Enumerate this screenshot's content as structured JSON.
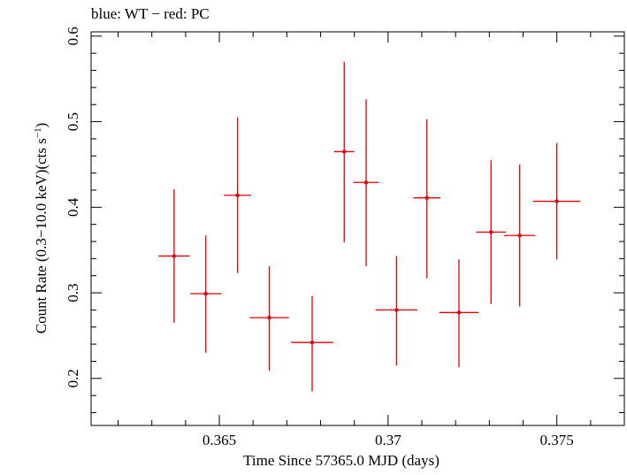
{
  "chart_data": {
    "type": "scatter",
    "title": "blue: WT − red: PC",
    "xlabel": "Time Since 57365.0 MJD (days)",
    "ylabel_main": "Count Rate (0.3−10.0 keV)(cts s",
    "ylabel_sup": "−1",
    "ylabel_tail": ")",
    "xlim": [
      0.3612,
      0.377
    ],
    "ylim": [
      0.145,
      0.605
    ],
    "x_ticks": [
      0.365,
      0.37,
      0.375
    ],
    "x_tick_labels": [
      "0.365",
      "0.37",
      "0.375"
    ],
    "y_ticks": [
      0.2,
      0.3,
      0.4,
      0.5,
      0.6
    ],
    "y_tick_labels": [
      "0.2",
      "0.3",
      "0.4",
      "0.5",
      "0.6"
    ],
    "grid": false,
    "series": [
      {
        "color": "#e00000",
        "points": [
          {
            "x": 0.36366,
            "xerr": 0.00046,
            "y": 0.343,
            "ylo": 0.265,
            "yhi": 0.421
          },
          {
            "x": 0.3646,
            "xerr": 0.00046,
            "y": 0.299,
            "ylo": 0.23,
            "yhi": 0.367
          },
          {
            "x": 0.36554,
            "xerr": 0.0004,
            "y": 0.414,
            "ylo": 0.323,
            "yhi": 0.505
          },
          {
            "x": 0.36648,
            "xerr": 0.00058,
            "y": 0.271,
            "ylo": 0.209,
            "yhi": 0.331
          },
          {
            "x": 0.36775,
            "xerr": 0.00062,
            "y": 0.242,
            "ylo": 0.185,
            "yhi": 0.296
          },
          {
            "x": 0.3687,
            "xerr": 0.0003,
            "y": 0.465,
            "ylo": 0.359,
            "yhi": 0.57
          },
          {
            "x": 0.36935,
            "xerr": 0.00038,
            "y": 0.429,
            "ylo": 0.331,
            "yhi": 0.526
          },
          {
            "x": 0.37025,
            "xerr": 0.00062,
            "y": 0.28,
            "ylo": 0.215,
            "yhi": 0.343
          },
          {
            "x": 0.37115,
            "xerr": 0.0004,
            "y": 0.411,
            "ylo": 0.317,
            "yhi": 0.503
          },
          {
            "x": 0.3721,
            "xerr": 0.00058,
            "y": 0.277,
            "ylo": 0.213,
            "yhi": 0.339
          },
          {
            "x": 0.37305,
            "xerr": 0.00044,
            "y": 0.371,
            "ylo": 0.287,
            "yhi": 0.455
          },
          {
            "x": 0.3739,
            "xerr": 0.00046,
            "y": 0.367,
            "ylo": 0.284,
            "yhi": 0.45
          },
          {
            "x": 0.375,
            "xerr": 0.0007,
            "y": 0.407,
            "ylo": 0.339,
            "yhi": 0.475
          }
        ]
      }
    ]
  }
}
